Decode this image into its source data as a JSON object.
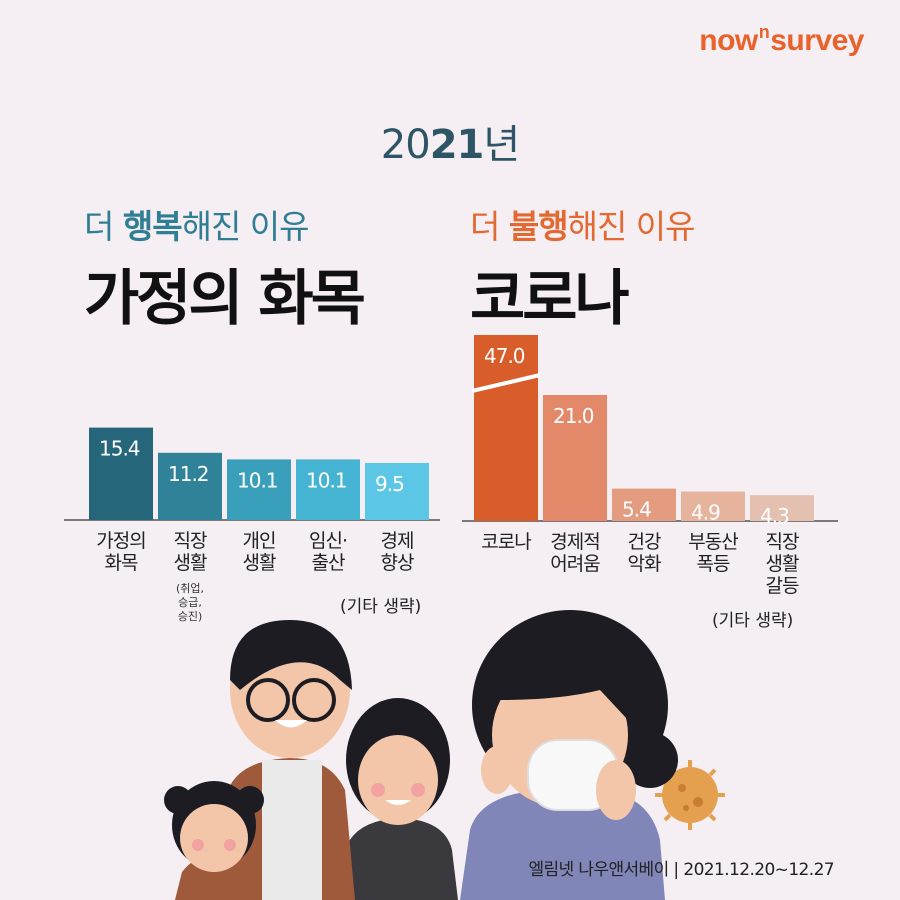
{
  "brand": {
    "pre": "now",
    "sup": "n",
    "post": "survey"
  },
  "year": {
    "plain": "20",
    "bold": "21",
    "suffix": "년"
  },
  "left": {
    "subtitle_a": "더 ",
    "subtitle_b": "행복",
    "subtitle_c": "해진 이유",
    "headline": "가정의 화목",
    "note": "(기타 생략)"
  },
  "right": {
    "subtitle_a": "더 ",
    "subtitle_b": "불행",
    "subtitle_c": "해진 이유",
    "headline": "코로나",
    "note": "(기타 생략)"
  },
  "chart_data": [
    {
      "type": "bar",
      "title": "더 행복해진 이유",
      "categories": [
        "가정의 화목",
        "직장 생활",
        "개인 생활",
        "임신·출산",
        "경제 향상"
      ],
      "category_lines": [
        [
          "가정의",
          "화목"
        ],
        [
          "직장",
          "생활"
        ],
        [
          "개인",
          "생활"
        ],
        [
          "임신·",
          "출산"
        ],
        [
          "경제",
          "향상"
        ]
      ],
      "category_notes": [
        "",
        "(취업, 승급, 승진)",
        "",
        "",
        ""
      ],
      "category_note_lines": [
        [],
        [
          "(취업,",
          "승급,",
          "승진)"
        ],
        [],
        [],
        []
      ],
      "values": [
        15.4,
        11.2,
        10.1,
        10.1,
        9.5
      ],
      "value_labels": [
        "15.4",
        "11.2",
        "10.1",
        "10.1",
        "9.5"
      ],
      "colors": [
        "#26667b",
        "#2f8298",
        "#3a9fbb",
        "#44b4d2",
        "#5cc6e6"
      ],
      "note": "(기타 생략)"
    },
    {
      "type": "bar",
      "title": "더 불행해진 이유",
      "categories": [
        "코로나",
        "경제적 어려움",
        "건강 악화",
        "부동산 폭등",
        "직장 생활 갈등"
      ],
      "category_lines": [
        [
          "코로나"
        ],
        [
          "경제적",
          "어려움"
        ],
        [
          "건강",
          "악화"
        ],
        [
          "부동산",
          "폭등"
        ],
        [
          "직장",
          "생활",
          "갈등"
        ]
      ],
      "values": [
        47.0,
        21.0,
        5.4,
        4.9,
        4.3
      ],
      "value_labels": [
        "47.0",
        "21.0",
        "5.4",
        "4.9",
        "4.3"
      ],
      "broken_axis_first_bar": true,
      "colors": [
        "#d95c2b",
        "#e3896a",
        "#e39c80",
        "#e6b39d",
        "#e4c0b0"
      ],
      "note": "(기타 생략)"
    }
  ],
  "source": "엘림넷 나우앤서베이 | 2021.12.20~12.27",
  "colors": {
    "background": "#f5eef3",
    "accent_blue": "#2f7e93",
    "accent_orange": "#e26a32"
  }
}
